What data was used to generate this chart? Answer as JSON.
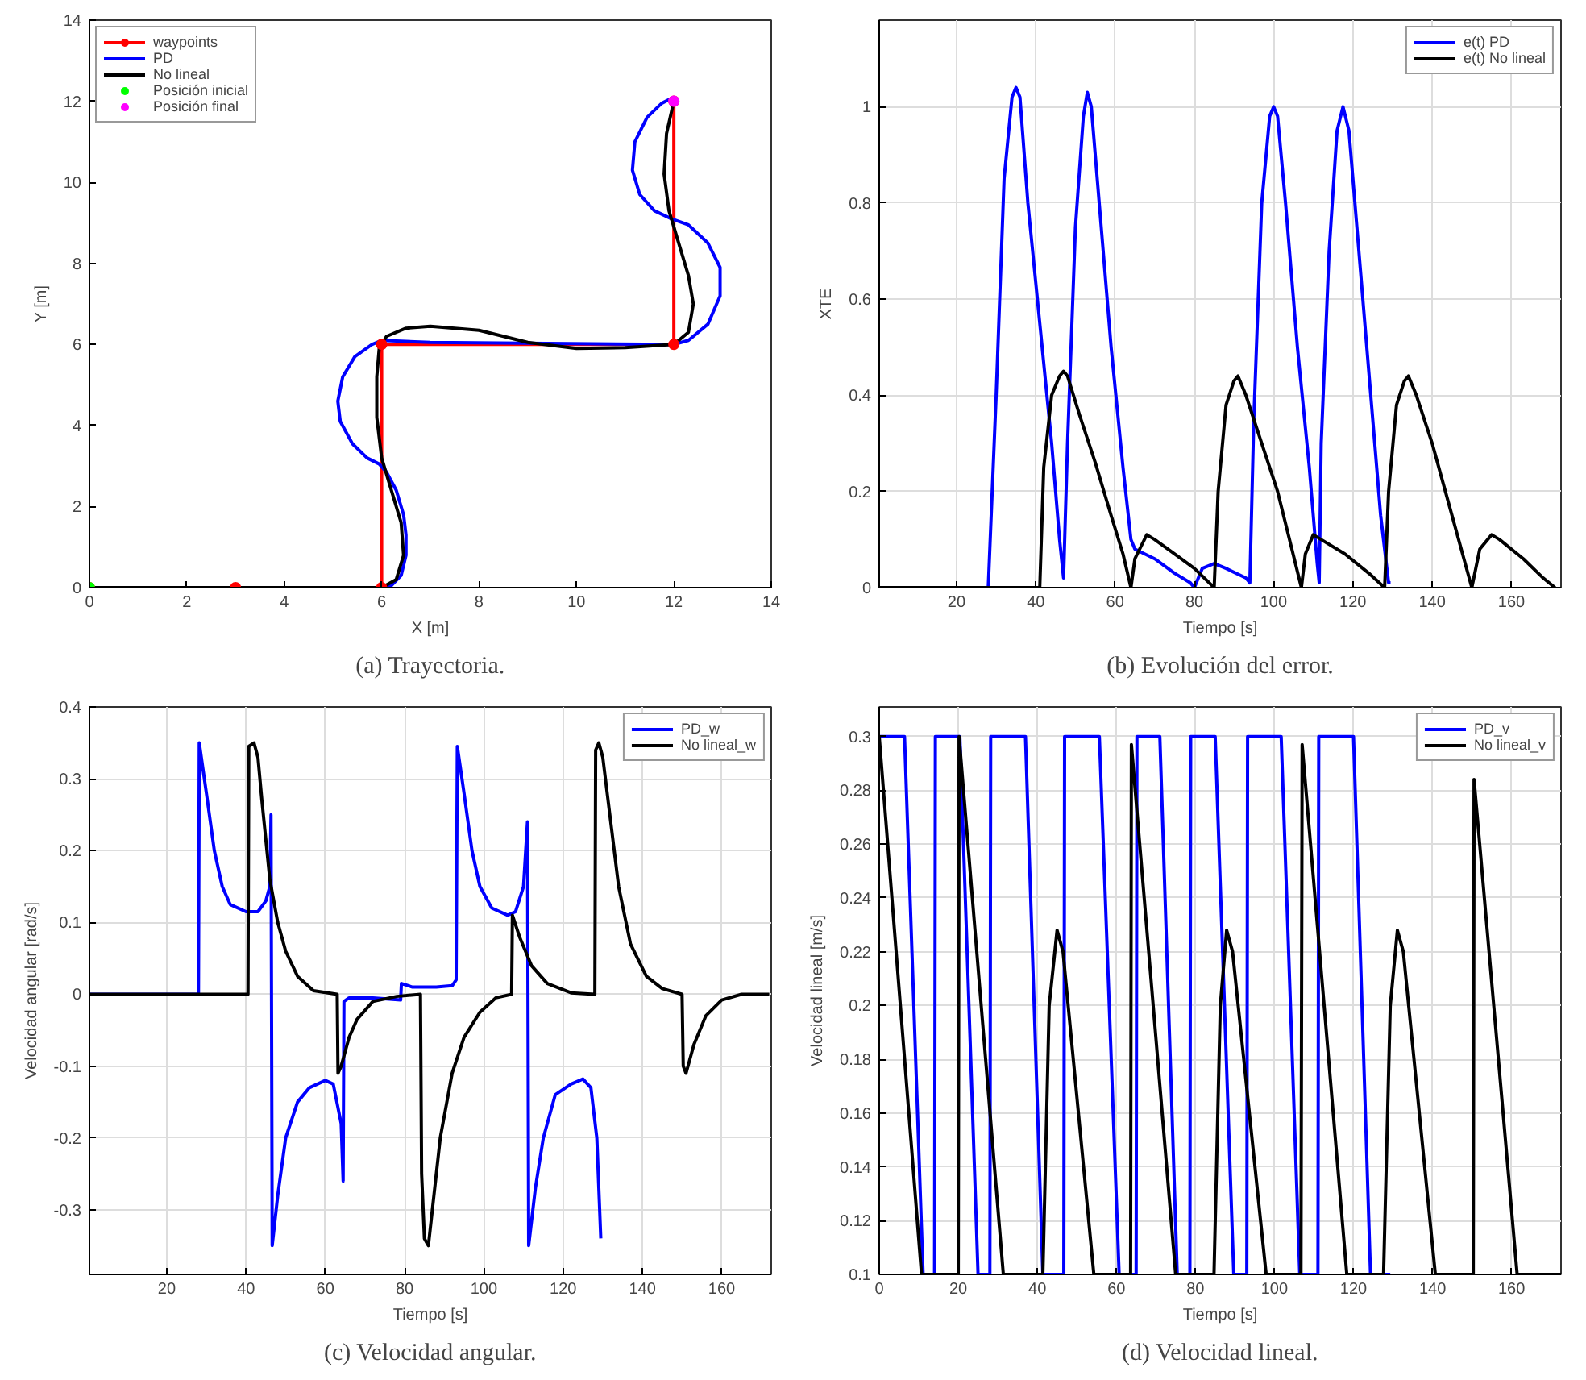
{
  "chart_data": [
    {
      "type": "line",
      "title": "(a) Trayectoria.",
      "xlabel": "X [m]",
      "ylabel": "Y [m]",
      "xlim": [
        0,
        14
      ],
      "ylim": [
        0,
        14
      ],
      "xticks": [
        0,
        2,
        4,
        6,
        8,
        10,
        12,
        14
      ],
      "yticks": [
        0,
        2,
        4,
        6,
        8,
        10,
        12,
        14
      ],
      "legend": "top left",
      "series": [
        {
          "name": "waypoints",
          "color": "#ff0000",
          "marker": "circle",
          "x": [
            0,
            3,
            6,
            6,
            12,
            12
          ],
          "values": [
            0,
            0,
            0,
            6,
            6,
            12
          ]
        },
        {
          "name": "PD",
          "color": "#0000ff",
          "x": [
            0,
            6,
            6.2,
            6.4,
            6.5,
            6.5,
            6.45,
            6.3,
            6.1,
            5.95,
            5.7,
            5.4,
            5.15,
            5.1,
            5.2,
            5.45,
            5.8,
            6,
            7,
            12,
            12.3,
            12.7,
            12.95,
            12.95,
            12.7,
            12.3,
            11.95,
            11.6,
            11.3,
            11.15,
            11.2,
            11.45,
            11.75,
            12
          ],
          "values": [
            0,
            0,
            0.05,
            0.3,
            0.8,
            1.3,
            1.8,
            2.4,
            2.85,
            3.05,
            3.2,
            3.55,
            4.1,
            4.6,
            5.2,
            5.7,
            6.0,
            6.1,
            6.05,
            6.0,
            6.1,
            6.5,
            7.2,
            7.9,
            8.5,
            8.95,
            9.1,
            9.3,
            9.7,
            10.3,
            11.0,
            11.6,
            11.95,
            12.1
          ]
        },
        {
          "name": "No lineal",
          "color": "#000000",
          "x": [
            0,
            6,
            6.3,
            6.45,
            6.4,
            6.2,
            6.0,
            5.9,
            5.9,
            5.95,
            6.1,
            6.5,
            7,
            8,
            9,
            10,
            11,
            12,
            12.3,
            12.4,
            12.3,
            12.1,
            11.9,
            11.8,
            11.85,
            12
          ],
          "values": [
            0,
            0,
            0.2,
            0.8,
            1.6,
            2.4,
            3.2,
            4.2,
            5.2,
            5.9,
            6.2,
            6.4,
            6.45,
            6.35,
            6.05,
            5.9,
            5.92,
            6.0,
            6.3,
            7.0,
            7.7,
            8.5,
            9.3,
            10.2,
            11.2,
            12
          ]
        },
        {
          "name": "Posición inicial",
          "type": "scatter",
          "color": "#00ff00",
          "x": [
            0
          ],
          "values": [
            0
          ]
        },
        {
          "name": "Posición final",
          "type": "scatter",
          "color": "#ff00ff",
          "x": [
            12
          ],
          "values": [
            12
          ]
        }
      ]
    },
    {
      "type": "line",
      "title": "(b) Evolución del error.",
      "xlabel": "Tiempo [s]",
      "ylabel": "XTE",
      "xlim": [
        0.5,
        172.5
      ],
      "ylim": [
        0,
        1.18
      ],
      "xticks": [
        20,
        40,
        60,
        80,
        100,
        120,
        140,
        160
      ],
      "yticks": [
        0,
        0.2,
        0.4,
        0.6,
        0.8,
        1
      ],
      "grid": true,
      "legend": "top right",
      "series": [
        {
          "name": "e(t) PD",
          "color": "#0000ff",
          "x": [
            0.5,
            28,
            30,
            32,
            34,
            35,
            36,
            38,
            41,
            44,
            46,
            47,
            48,
            50,
            52,
            53,
            54,
            56,
            59,
            62,
            64,
            65,
            70,
            75,
            79,
            80,
            82,
            85,
            88,
            93,
            94,
            95,
            97,
            99,
            100,
            101,
            103,
            106,
            109,
            111,
            111.5,
            112,
            114,
            116,
            117.5,
            119,
            121,
            124,
            127,
            129,
            129.5
          ],
          "values": [
            0,
            0,
            0.4,
            0.85,
            1.02,
            1.04,
            1.02,
            0.8,
            0.55,
            0.3,
            0.1,
            0.02,
            0.3,
            0.75,
            0.98,
            1.03,
            1.0,
            0.8,
            0.5,
            0.25,
            0.1,
            0.08,
            0.06,
            0.03,
            0.01,
            0.0,
            0.04,
            0.05,
            0.04,
            0.02,
            0.01,
            0.35,
            0.8,
            0.98,
            1.0,
            0.98,
            0.8,
            0.5,
            0.25,
            0.05,
            0.01,
            0.3,
            0.7,
            0.95,
            1.0,
            0.95,
            0.75,
            0.45,
            0.15,
            0.01,
            0.01
          ]
        },
        {
          "name": "e(t) No lineal",
          "color": "#000000",
          "x": [
            0.5,
            41,
            42,
            44,
            46,
            47,
            48,
            51,
            55,
            59,
            62,
            64,
            65,
            68,
            70,
            75,
            80,
            85,
            86,
            88,
            90,
            91,
            93,
            97,
            101,
            104,
            107,
            108,
            110,
            112,
            118,
            124,
            128,
            129,
            131,
            133,
            134,
            136,
            140,
            144,
            148,
            150,
            152,
            155,
            157,
            163,
            168,
            171
          ],
          "values": [
            0,
            0,
            0.25,
            0.4,
            0.44,
            0.45,
            0.44,
            0.36,
            0.26,
            0.15,
            0.07,
            0.0,
            0.06,
            0.11,
            0.1,
            0.07,
            0.04,
            0.0,
            0.2,
            0.38,
            0.43,
            0.44,
            0.4,
            0.3,
            0.2,
            0.1,
            0.0,
            0.07,
            0.11,
            0.1,
            0.07,
            0.03,
            0.0,
            0.2,
            0.38,
            0.43,
            0.44,
            0.4,
            0.3,
            0.18,
            0.06,
            0.0,
            0.08,
            0.11,
            0.1,
            0.06,
            0.02,
            0.0
          ]
        }
      ]
    },
    {
      "type": "line",
      "title": "(c) Velocidad angular.",
      "xlabel": "Tiempo [s]",
      "ylabel": "Velocidad angular [rad/s]",
      "xlim": [
        0.5,
        172.5
      ],
      "ylim": [
        -0.39,
        0.4
      ],
      "xticks": [
        20,
        40,
        60,
        80,
        100,
        120,
        140,
        160
      ],
      "yticks": [
        -0.3,
        -0.2,
        -0.1,
        0,
        0.1,
        0.2,
        0.3,
        0.4
      ],
      "grid": true,
      "legend": "top right",
      "series": [
        {
          "name": "PD_w",
          "color": "#0000ff",
          "x": [
            0.5,
            28,
            28.2,
            30,
            32,
            34,
            36,
            40,
            43,
            45,
            46,
            46.3,
            46.6,
            48,
            50,
            53,
            56,
            60,
            62,
            64,
            64.5,
            64.7,
            66,
            72,
            79,
            79.2,
            82,
            88,
            92,
            93,
            93.3,
            95,
            97,
            99,
            102,
            106,
            108,
            110,
            111,
            111.3,
            113,
            115,
            118,
            122,
            125,
            127,
            128.5,
            129.5
          ],
          "values": [
            0,
            0,
            0.35,
            0.28,
            0.2,
            0.15,
            0.125,
            0.115,
            0.115,
            0.13,
            0.15,
            0.25,
            -0.35,
            -0.28,
            -0.2,
            -0.15,
            -0.13,
            -0.12,
            -0.125,
            -0.18,
            -0.26,
            -0.01,
            -0.005,
            -0.005,
            -0.008,
            0.015,
            0.01,
            0.01,
            0.012,
            0.02,
            0.345,
            0.28,
            0.2,
            0.15,
            0.12,
            0.11,
            0.115,
            0.15,
            0.24,
            -0.35,
            -0.27,
            -0.2,
            -0.14,
            -0.125,
            -0.118,
            -0.13,
            -0.2,
            -0.34
          ]
        },
        {
          "name": "No lineal_w",
          "color": "#000000",
          "x": [
            0.5,
            40.5,
            40.7,
            42,
            43,
            44,
            46,
            48,
            50,
            53,
            57,
            63,
            63.2,
            64,
            66,
            68,
            72,
            78,
            84,
            84.3,
            85,
            86,
            87,
            89,
            92,
            95,
            99,
            103,
            107,
            107.2,
            109,
            112,
            116,
            122,
            128,
            128.2,
            129,
            130,
            132,
            134,
            137,
            141,
            145,
            150,
            150.3,
            151,
            153,
            156,
            160,
            165,
            172
          ],
          "values": [
            0,
            0,
            0.345,
            0.35,
            0.33,
            0.27,
            0.16,
            0.1,
            0.06,
            0.025,
            0.005,
            0,
            -0.11,
            -0.1,
            -0.06,
            -0.035,
            -0.01,
            -0.003,
            0,
            -0.25,
            -0.34,
            -0.35,
            -0.3,
            -0.2,
            -0.11,
            -0.06,
            -0.025,
            -0.005,
            0,
            0.11,
            0.08,
            0.04,
            0.015,
            0.002,
            0,
            0.34,
            0.35,
            0.33,
            0.24,
            0.15,
            0.07,
            0.025,
            0.008,
            0,
            -0.1,
            -0.11,
            -0.07,
            -0.03,
            -0.008,
            0,
            0
          ]
        }
      ]
    },
    {
      "type": "line",
      "title": "(d) Velocidad lineal.",
      "xlabel": "Tiempo [s]",
      "ylabel": "Velocidad lineal [m/s]",
      "xlim": [
        0,
        172.5
      ],
      "ylim": [
        0.1,
        0.311
      ],
      "xticks": [
        0,
        20,
        40,
        60,
        80,
        100,
        120,
        140,
        160
      ],
      "yticks": [
        0.1,
        0.12,
        0.14,
        0.16,
        0.18,
        0.2,
        0.22,
        0.24,
        0.26,
        0.28,
        0.3
      ],
      "grid": true,
      "legend": "top right",
      "series": [
        {
          "name": "PD_v",
          "color": "#0000ff",
          "x": [
            0,
            6.4,
            11.1,
            14,
            14.2,
            20.4,
            25,
            28,
            28.2,
            37,
            41.4,
            46.7,
            46.9,
            55.7,
            60.7,
            65,
            65.2,
            71,
            75.4,
            78.6,
            78.8,
            85,
            89.7,
            93,
            93.2,
            101.7,
            106.4,
            111,
            111.2,
            120,
            124.3,
            129.3
          ],
          "values": [
            0.3,
            0.3,
            0.1,
            0.1,
            0.3,
            0.3,
            0.1,
            0.1,
            0.3,
            0.3,
            0.1,
            0.1,
            0.3,
            0.3,
            0.1,
            0.1,
            0.3,
            0.3,
            0.1,
            0.1,
            0.3,
            0.3,
            0.1,
            0.1,
            0.3,
            0.3,
            0.1,
            0.1,
            0.3,
            0.3,
            0.1,
            0.1
          ]
        },
        {
          "name": "No lineal_v",
          "color": "#000000",
          "x": [
            0,
            10.7,
            20,
            20.2,
            31.4,
            41.4,
            43,
            45,
            46.5,
            54.3,
            63.6,
            63.8,
            75,
            84.7,
            86.3,
            87.9,
            89.4,
            97.9,
            106.7,
            107,
            118.3,
            127.6,
            129.3,
            131.1,
            132.6,
            140.7,
            150.3,
            150.5,
            161.4,
            172.5
          ],
          "values": [
            0.3,
            0.1,
            0.1,
            0.3,
            0.1,
            0.1,
            0.2,
            0.228,
            0.22,
            0.1,
            0.1,
            0.297,
            0.1,
            0.1,
            0.2,
            0.228,
            0.22,
            0.1,
            0.1,
            0.297,
            0.1,
            0.1,
            0.2,
            0.228,
            0.22,
            0.1,
            0.1,
            0.284,
            0.1,
            0.1
          ]
        }
      ]
    }
  ]
}
